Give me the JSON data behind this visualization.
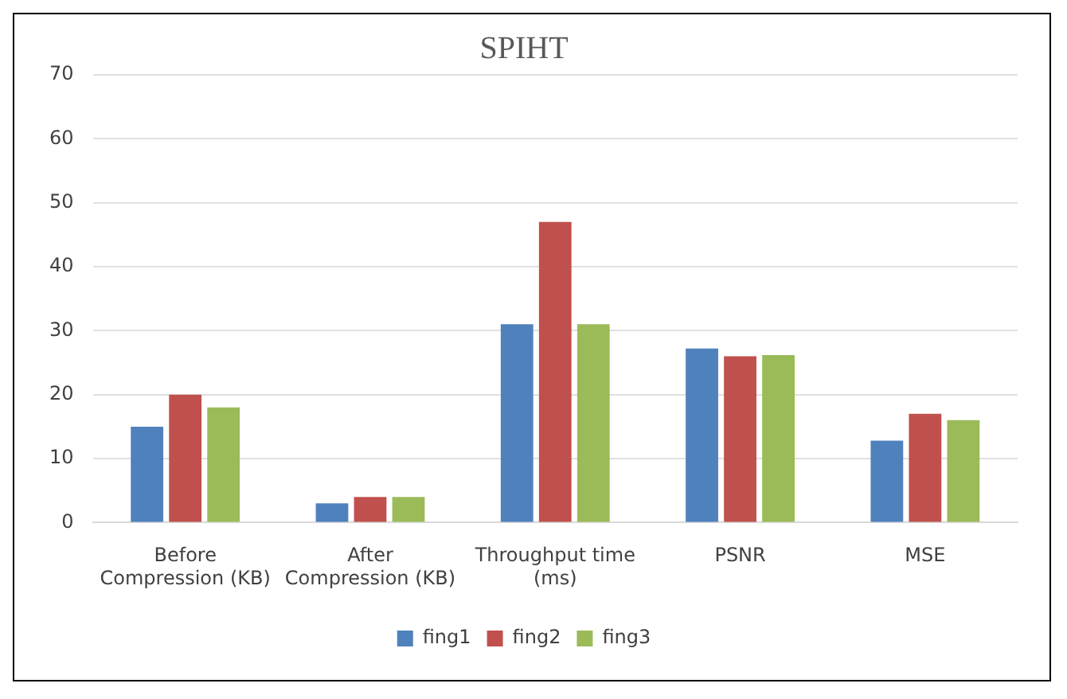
{
  "chart_data": {
    "type": "bar",
    "title": "SPIHT",
    "categories": [
      "Before Compression (KB)",
      "After Compression (KB)",
      "Throughput time (ms)",
      "PSNR",
      "MSE"
    ],
    "series": [
      {
        "name": "fing1",
        "color": "#4f81bd",
        "values": [
          15,
          3,
          31,
          27.2,
          12.8
        ]
      },
      {
        "name": "fing2",
        "color": "#c0504d",
        "values": [
          20,
          4,
          47,
          26,
          17
        ]
      },
      {
        "name": "fing3",
        "color": "#9bbb59",
        "values": [
          18,
          4,
          31,
          26.2,
          16
        ]
      }
    ],
    "ylim": [
      0,
      70
    ],
    "yticks": [
      0,
      10,
      20,
      30,
      40,
      50,
      60,
      70
    ],
    "grid": "y",
    "legend": "bottom"
  }
}
